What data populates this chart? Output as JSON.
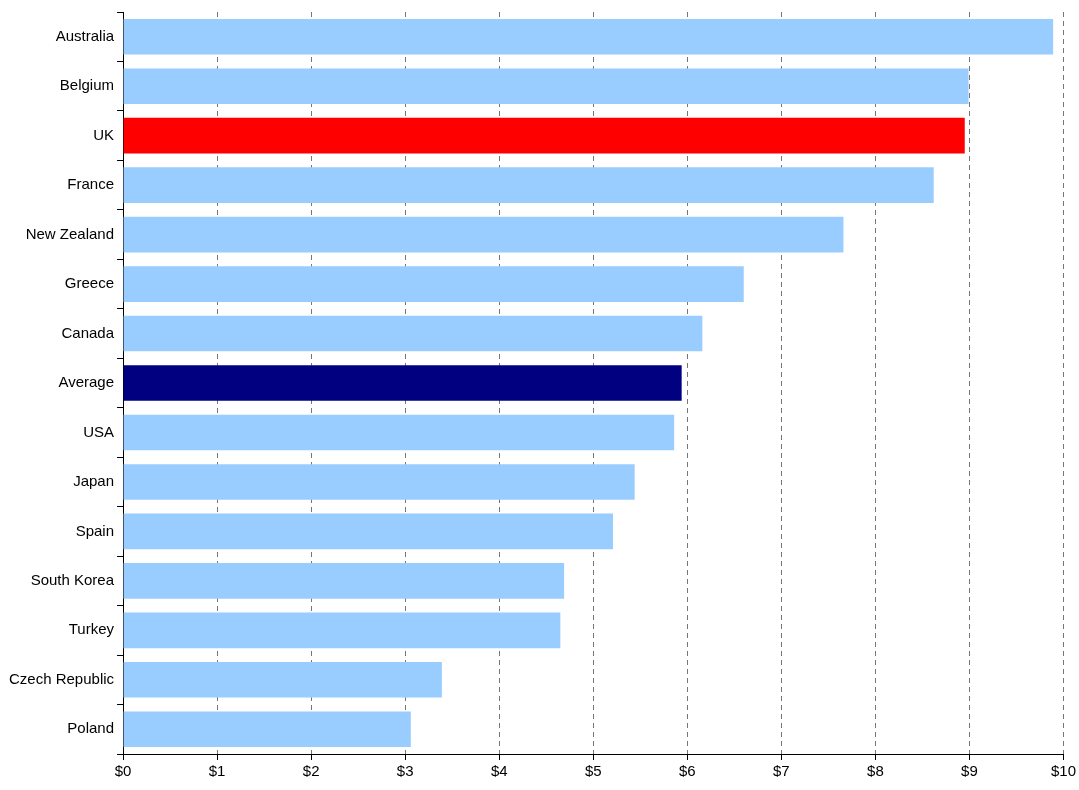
{
  "chart_data": {
    "type": "bar",
    "orientation": "horizontal",
    "categories": [
      "Australia",
      "Belgium",
      "UK",
      "France",
      "New Zealand",
      "Greece",
      "Canada",
      "Average",
      "USA",
      "Japan",
      "Spain",
      "South Korea",
      "Turkey",
      "Czech Republic",
      "Poland"
    ],
    "values": [
      9.89,
      8.99,
      8.95,
      8.62,
      7.66,
      6.6,
      6.16,
      5.94,
      5.86,
      5.44,
      5.21,
      4.69,
      4.65,
      3.39,
      3.06
    ],
    "colors": [
      "#99ccff",
      "#99ccff",
      "#ff0000",
      "#99ccff",
      "#99ccff",
      "#99ccff",
      "#99ccff",
      "#000080",
      "#99ccff",
      "#99ccff",
      "#99ccff",
      "#99ccff",
      "#99ccff",
      "#99ccff",
      "#99ccff"
    ],
    "xlim": [
      0,
      10
    ],
    "xticks": [
      {
        "value": 0,
        "label": "$0"
      },
      {
        "value": 1,
        "label": "$1"
      },
      {
        "value": 2,
        "label": "$2"
      },
      {
        "value": 3,
        "label": "$3"
      },
      {
        "value": 4,
        "label": "$4"
      },
      {
        "value": 5,
        "label": "$5"
      },
      {
        "value": 6,
        "label": "$6"
      },
      {
        "value": 7,
        "label": "$7"
      },
      {
        "value": 8,
        "label": "$8"
      },
      {
        "value": 9,
        "label": "$9"
      },
      {
        "value": 10,
        "label": "$10"
      }
    ],
    "grid": "x",
    "legend": false
  }
}
